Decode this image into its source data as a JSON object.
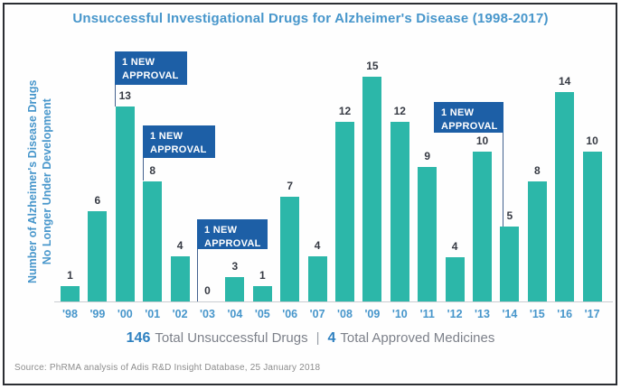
{
  "title": "Unsuccessful Investigational Drugs for Alzheimer's Disease (1998-2017)",
  "y_axis": {
    "line1": "Number of Alzheimer's Disease Drugs",
    "line2": "No Longer Under Development"
  },
  "chart_data": {
    "type": "bar",
    "title": "Unsuccessful Investigational Drugs for Alzheimer's Disease (1998-2017)",
    "categories": [
      "'98",
      "'99",
      "'00",
      "'01",
      "'02",
      "'03",
      "'04",
      "'05",
      "'06",
      "'07",
      "'08",
      "'09",
      "'10",
      "'11",
      "'12",
      "'13",
      "'14",
      "'15",
      "'16",
      "'17"
    ],
    "values": [
      1,
      6,
      13,
      8,
      4,
      0,
      3,
      1,
      7,
      4,
      12,
      15,
      12,
      9,
      4,
      10,
      5,
      8,
      14,
      10
    ],
    "xlabel": "",
    "ylabel": "Number of Alzheimer's Disease Drugs No Longer Under Development",
    "ylim": [
      0,
      15
    ],
    "grid": false,
    "legend": false,
    "bar_color": "#2cb7a9",
    "annotations": [
      {
        "label": "1 NEW APPROVAL",
        "year": "'00"
      },
      {
        "label": "1 NEW APPROVAL",
        "year": "'01"
      },
      {
        "label": "1 NEW APPROVAL",
        "year": "'03"
      },
      {
        "label": "1 NEW APPROVAL",
        "year": "'14"
      }
    ]
  },
  "footer": {
    "total_unsuccessful_value": "146",
    "total_unsuccessful_label": "Total Unsuccessful Drugs",
    "separator": "|",
    "total_approved_value": "4",
    "total_approved_label": "Total Approved Medicines"
  },
  "source": "Source: PhRMA analysis of Adis R&D Insight Database, 25 January 2018",
  "colors": {
    "title_blue": "#4796cb",
    "bar_teal": "#2cb7a9",
    "flag_blue": "#1d5fa6",
    "value_label": "#373b44",
    "totals_number_blue": "#2e80c0",
    "gray_text": "#7d818a",
    "frame_border": "#2b2e33"
  }
}
